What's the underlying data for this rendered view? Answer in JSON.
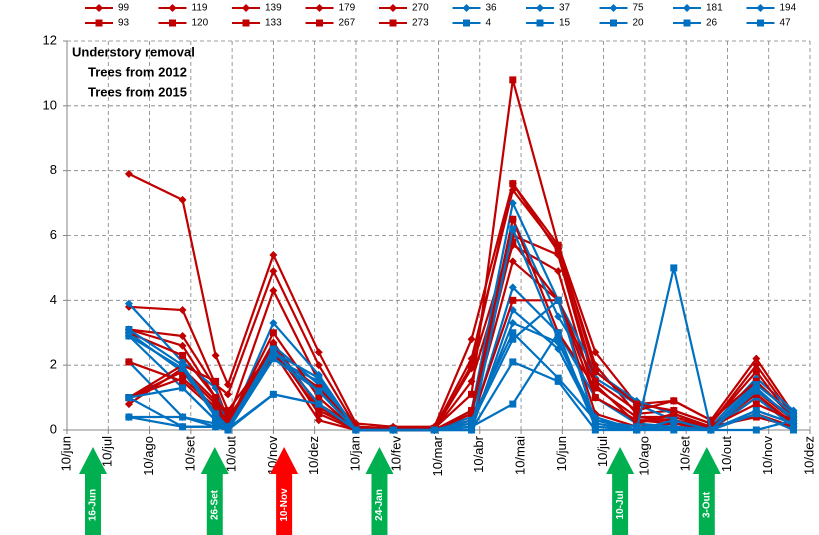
{
  "chart_data": {
    "type": "line",
    "x": [
      1.5,
      2.8,
      3.6,
      3.9,
      5.0,
      6.1,
      7.0,
      7.9,
      8.9,
      9.8,
      10.8,
      11.9,
      12.8,
      13.8,
      14.7,
      15.6,
      16.7,
      17.6
    ],
    "xlim": [
      0,
      18
    ],
    "xticks": [
      {
        "value": 0,
        "label": "10/jun"
      },
      {
        "value": 1,
        "label": "10/jul"
      },
      {
        "value": 2,
        "label": "10/ago"
      },
      {
        "value": 3,
        "label": "10/set"
      },
      {
        "value": 4,
        "label": "10/out"
      },
      {
        "value": 5,
        "label": "10/nov"
      },
      {
        "value": 6,
        "label": "10/dez"
      },
      {
        "value": 7,
        "label": "10/jan"
      },
      {
        "value": 8,
        "label": "10/fev"
      },
      {
        "value": 9,
        "label": "10/mar"
      },
      {
        "value": 10,
        "label": "10/abr"
      },
      {
        "value": 11,
        "label": "10/mai"
      },
      {
        "value": 12,
        "label": "10/jun"
      },
      {
        "value": 13,
        "label": "10/jul"
      },
      {
        "value": 14,
        "label": "10/ago"
      },
      {
        "value": 15,
        "label": "10/set"
      },
      {
        "value": 16,
        "label": "10/out"
      },
      {
        "value": 17,
        "label": "10/nov"
      },
      {
        "value": 18,
        "label": "10/dez"
      }
    ],
    "ylim": [
      0,
      12
    ],
    "yticks": [
      0,
      2,
      4,
      6,
      8,
      10,
      12
    ],
    "grid": true,
    "notes": [
      {
        "text": "Understory removal",
        "color": "#000000"
      },
      {
        "text": "Trees from 2012",
        "color": "#0070c0"
      },
      {
        "text": "Trees from 2015",
        "color": "#c00000"
      }
    ],
    "annotations": [
      {
        "text": "16-Jun",
        "x": 0.63,
        "color": "#00b050"
      },
      {
        "text": "26-Set",
        "x": 3.58,
        "color": "#00b050"
      },
      {
        "text": "10-Nov",
        "x": 5.26,
        "color": "#ff0000"
      },
      {
        "text": "24-Jan",
        "x": 7.57,
        "color": "#00b050"
      },
      {
        "text": "10-Jul",
        "x": 13.4,
        "color": "#00b050"
      },
      {
        "text": "3-Out",
        "x": 15.5,
        "color": "#00b050"
      }
    ],
    "series": [
      {
        "name": "99",
        "color": "#c00000",
        "marker": "diamond",
        "values": [
          7.9,
          7.1,
          2.3,
          1.4,
          5.4,
          2.4,
          0.2,
          0.1,
          0.1,
          2.8,
          7.6,
          5.7,
          2.4,
          0.8,
          0.9,
          0.3,
          2.2,
          0.5
        ]
      },
      {
        "name": "119",
        "color": "#c00000",
        "marker": "diamond",
        "values": [
          3.8,
          3.7,
          1.4,
          1.1,
          4.9,
          2.0,
          0.1,
          0.05,
          0.05,
          2.2,
          7.4,
          5.6,
          2.0,
          0.5,
          0.6,
          0.2,
          2.0,
          0.4
        ]
      },
      {
        "name": "139",
        "color": "#c00000",
        "marker": "diamond",
        "values": [
          3.1,
          2.9,
          1.3,
          0.3,
          4.3,
          1.5,
          0.1,
          0,
          0,
          1.9,
          6.0,
          5.4,
          1.3,
          0.4,
          0.4,
          0.1,
          1.2,
          0.3
        ]
      },
      {
        "name": "179",
        "color": "#c00000",
        "marker": "diamond",
        "values": [
          3.1,
          2.6,
          1.0,
          0.2,
          2.7,
          0.7,
          0.05,
          0,
          0,
          1.5,
          5.7,
          4.9,
          1.0,
          0.3,
          0.3,
          0.05,
          1.0,
          0.2
        ]
      },
      {
        "name": "270",
        "color": "#c00000",
        "marker": "diamond",
        "values": [
          0.8,
          1.9,
          0.9,
          0.1,
          2.4,
          0.3,
          0,
          0,
          0,
          0.5,
          5.2,
          4.0,
          0.5,
          0.1,
          0.2,
          0,
          0.5,
          0.1
        ]
      },
      {
        "name": "36",
        "color": "#0070c0",
        "marker": "diamond",
        "values": [
          3.9,
          2.1,
          1.3,
          0.1,
          3.3,
          1.7,
          0,
          0,
          0,
          0.6,
          7.0,
          4.0,
          1.8,
          0.9,
          0.5,
          0.1,
          1.6,
          0.6
        ]
      },
      {
        "name": "37",
        "color": "#0070c0",
        "marker": "diamond",
        "values": [
          3.0,
          1.8,
          0.5,
          0.1,
          2.6,
          1.4,
          0,
          0,
          0,
          0.4,
          6.5,
          3.5,
          1.6,
          0.8,
          0.3,
          0,
          1.5,
          0.4
        ]
      },
      {
        "name": "75",
        "color": "#0070c0",
        "marker": "diamond",
        "values": [
          2.9,
          1.3,
          0.3,
          0.05,
          2.3,
          1.3,
          0,
          0,
          0,
          0.2,
          4.4,
          3.0,
          1.0,
          0.2,
          0.1,
          0,
          1.3,
          0.3
        ]
      },
      {
        "name": "181",
        "color": "#0070c0",
        "marker": "diamond",
        "values": [
          2.1,
          0.4,
          0.1,
          0.05,
          1.1,
          0.8,
          0,
          0,
          0,
          0.1,
          3.3,
          2.7,
          0.4,
          0,
          0.1,
          0,
          0.6,
          0.2
        ]
      },
      {
        "name": "194",
        "color": "#0070c0",
        "marker": "diamond",
        "values": [
          0.4,
          0.1,
          0.1,
          0,
          2.2,
          1.5,
          0,
          0,
          0,
          0,
          3.7,
          2.5,
          0.3,
          0,
          0.05,
          0,
          1.0,
          0.1
        ]
      },
      {
        "name": "93",
        "color": "#c00000",
        "marker": "square",
        "values": [
          1.0,
          2.0,
          1.5,
          0.6,
          2.5,
          0.8,
          0.1,
          0.05,
          0.05,
          1.1,
          10.8,
          5.7,
          1.8,
          0.8,
          0.6,
          0.2,
          1.8,
          0.3
        ]
      },
      {
        "name": "120",
        "color": "#c00000",
        "marker": "square",
        "values": [
          3.0,
          2.3,
          1.0,
          0.4,
          2.3,
          1.3,
          0.05,
          0,
          0,
          2.0,
          7.6,
          5.5,
          1.5,
          0.6,
          0.9,
          0.3,
          1.5,
          0.4
        ]
      },
      {
        "name": "133",
        "color": "#c00000",
        "marker": "square",
        "values": [
          1.0,
          1.8,
          0.8,
          0.2,
          3.0,
          1.0,
          0,
          0,
          0,
          0.3,
          4.0,
          4.0,
          1.4,
          0.2,
          0.5,
          0.1,
          1.1,
          0.2
        ]
      },
      {
        "name": "267",
        "color": "#c00000",
        "marker": "square",
        "values": [
          2.1,
          1.5,
          0.6,
          0.1,
          2.5,
          0.6,
          0.05,
          0,
          0,
          0.5,
          6.5,
          3.0,
          1.3,
          0.4,
          0.3,
          0.1,
          0.8,
          0.3
        ]
      },
      {
        "name": "273",
        "color": "#c00000",
        "marker": "square",
        "values": [
          1.0,
          1.6,
          0.7,
          0.2,
          2.6,
          0.5,
          0,
          0,
          0,
          0.6,
          5.8,
          4.0,
          1.0,
          0.3,
          0.2,
          0.1,
          0.4,
          0.1
        ]
      },
      {
        "name": "4",
        "color": "#0070c0",
        "marker": "square",
        "values": [
          1.0,
          0.1,
          0.1,
          0,
          2.4,
          1.2,
          0,
          0,
          0,
          0,
          6.2,
          2.8,
          0.1,
          0,
          5.0,
          0,
          1.4,
          0.5
        ]
      },
      {
        "name": "15",
        "color": "#0070c0",
        "marker": "square",
        "values": [
          2.9,
          1.9,
          0.4,
          0.1,
          2.5,
          0.8,
          0,
          0,
          0,
          0.3,
          3.0,
          1.6,
          0.3,
          0.1,
          0.1,
          0,
          0,
          0.3
        ]
      },
      {
        "name": "20",
        "color": "#0070c0",
        "marker": "square",
        "values": [
          0.4,
          0.4,
          0.2,
          0,
          1.1,
          0.8,
          0,
          0,
          0,
          0,
          2.1,
          1.5,
          0,
          0,
          0,
          0,
          0.5,
          0
        ]
      },
      {
        "name": "26",
        "color": "#0070c0",
        "marker": "square",
        "values": [
          3.1,
          2.0,
          0.5,
          0.1,
          2.4,
          1.6,
          0,
          0,
          0,
          0.2,
          2.8,
          4.0,
          0.2,
          0,
          0.3,
          0,
          1.2,
          0.4
        ]
      },
      {
        "name": "47",
        "color": "#0070c0",
        "marker": "square",
        "values": [
          1.0,
          1.3,
          0.3,
          0,
          2.2,
          1.2,
          0,
          0,
          0,
          0.1,
          0.8,
          3.0,
          0.1,
          0,
          0.1,
          0,
          0.6,
          0.2
        ]
      }
    ]
  }
}
